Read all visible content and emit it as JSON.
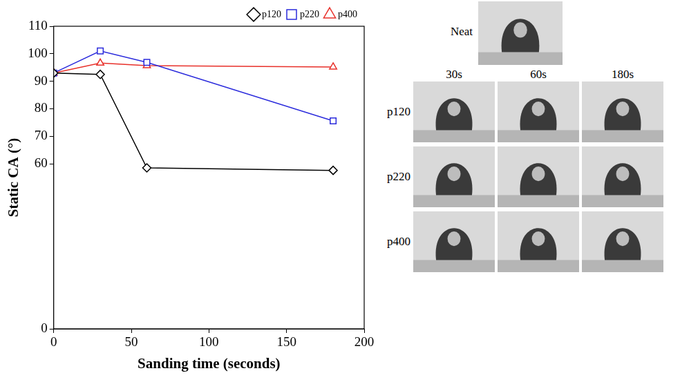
{
  "chart_data": {
    "type": "line",
    "x_label": "Sanding time (seconds)",
    "y_label": "Static CA (°)",
    "x": [
      0,
      30,
      60,
      180
    ],
    "series": [
      {
        "name": "p120",
        "color": "#000000",
        "marker": "diamond",
        "values": [
          93,
          92.5,
          58.5,
          57.6
        ]
      },
      {
        "name": "p220",
        "color": "#2b2bdc",
        "marker": "square",
        "values": [
          93,
          101,
          96.9,
          75.6
        ]
      },
      {
        "name": "p400",
        "color": "#e8302a",
        "marker": "triangle",
        "values": [
          93,
          96.6,
          95.7,
          95.2
        ]
      }
    ],
    "xlim": [
      0,
      200
    ],
    "xticks": [
      0,
      50,
      100,
      150,
      200
    ],
    "ylim": [
      0,
      110
    ],
    "yticks": [
      0,
      60,
      70,
      80,
      90,
      100,
      110
    ],
    "grid": false,
    "legend": "top"
  },
  "photo_panel": {
    "title": "Neat",
    "columns": [
      "30s",
      "60s",
      "180s"
    ],
    "rows": [
      "p120",
      "p220",
      "p400"
    ]
  }
}
